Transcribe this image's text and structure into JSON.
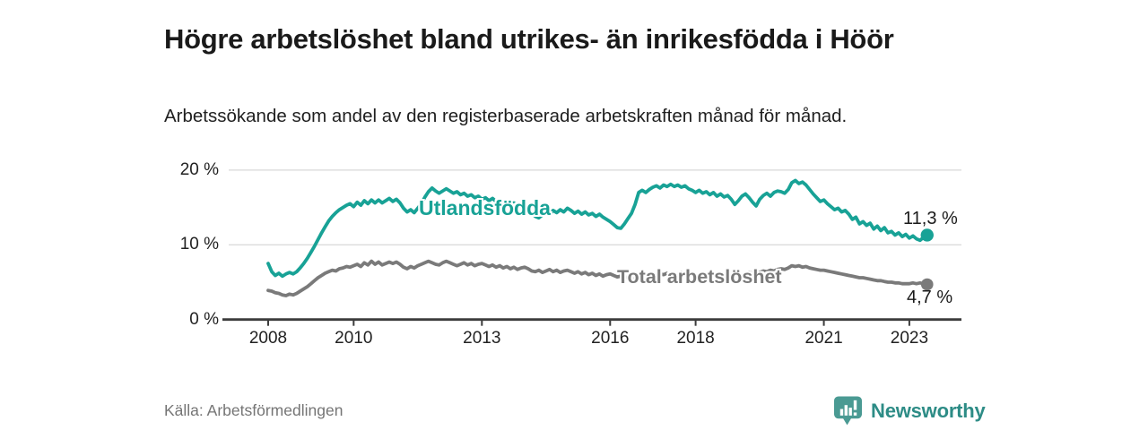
{
  "header": {
    "title": "Högre arbetslöshet bland utrikes- än inrikesfödda i Höör",
    "subtitle": "Arbetssökande som andel av den registerbaserade arbetskraften månad för månad."
  },
  "chart_data": {
    "type": "line",
    "title": "Högre arbetslöshet bland utrikes- än inrikesfödda i Höör",
    "subtitle": "Arbetssökande som andel av den registerbaserade arbetskraften månad för månad.",
    "x_unit": "month",
    "x_range": [
      "2008-01",
      "2023-06"
    ],
    "x_tick_labels": [
      "2008",
      "2010",
      "2013",
      "2016",
      "2018",
      "2021",
      "2023"
    ],
    "y_ticks": [
      {
        "value": 0,
        "label": "0 %"
      },
      {
        "value": 10,
        "label": "10 %"
      },
      {
        "value": 20,
        "label": "20 %"
      }
    ],
    "ylim": [
      0,
      21.5
    ],
    "grid": "horizontal",
    "legend_position": "inline-labels",
    "series": [
      {
        "name": "Utlandsfödda",
        "color": "#18a296",
        "end_value": 11.3,
        "end_label": "11,3 %",
        "values": [
          7.5,
          6.4,
          5.9,
          6.2,
          5.8,
          6.1,
          6.3,
          6.1,
          6.4,
          6.9,
          7.5,
          8.2,
          9.0,
          9.8,
          10.7,
          11.6,
          12.4,
          13.2,
          13.8,
          14.3,
          14.7,
          15.0,
          15.3,
          15.5,
          15.1,
          15.7,
          15.3,
          15.9,
          15.5,
          16.0,
          15.6,
          16.0,
          15.6,
          15.9,
          16.2,
          15.8,
          16.1,
          15.6,
          14.9,
          14.4,
          14.7,
          14.3,
          14.9,
          15.5,
          16.4,
          17.1,
          17.6,
          17.2,
          16.9,
          17.2,
          17.5,
          17.2,
          16.9,
          17.1,
          16.7,
          16.9,
          16.5,
          16.7,
          16.3,
          16.5,
          16.1,
          16.3,
          15.9,
          16.2,
          15.8,
          16.0,
          15.6,
          15.8,
          15.4,
          15.6,
          15.2,
          15.5,
          15.1,
          14.7,
          14.2,
          13.8,
          13.6,
          14.0,
          14.4,
          14.1,
          14.6,
          14.3,
          14.7,
          14.4,
          14.9,
          14.6,
          14.2,
          14.5,
          14.1,
          14.4,
          14.0,
          14.2,
          13.8,
          14.1,
          13.7,
          13.4,
          13.1,
          12.7,
          12.3,
          12.2,
          12.8,
          13.5,
          14.2,
          15.4,
          17.0,
          17.3,
          17.0,
          17.4,
          17.7,
          17.9,
          17.6,
          18.0,
          17.8,
          18.1,
          17.8,
          18.0,
          17.7,
          17.9,
          17.5,
          17.3,
          17.0,
          17.3,
          16.9,
          17.1,
          16.7,
          17.0,
          16.5,
          16.8,
          16.4,
          16.6,
          16.1,
          15.4,
          15.9,
          16.5,
          16.8,
          16.3,
          15.7,
          15.2,
          16.1,
          16.6,
          16.9,
          16.5,
          17.0,
          17.2,
          17.1,
          16.9,
          17.4,
          18.3,
          18.6,
          18.2,
          18.4,
          18.0,
          17.4,
          16.8,
          16.3,
          15.8,
          16.0,
          15.5,
          15.1,
          14.7,
          14.9,
          14.4,
          14.6,
          14.1,
          13.4,
          13.7,
          12.8,
          13.1,
          12.6,
          12.9,
          12.1,
          12.5,
          11.9,
          12.3,
          11.6,
          11.8,
          11.3,
          11.6,
          11.1,
          11.4,
          10.9,
          11.2,
          10.8,
          10.6,
          11.0,
          11.3
        ]
      },
      {
        "name": "Total arbetslöshet",
        "color": "#7a7a7a",
        "end_value": 4.7,
        "end_label": "4,7 %",
        "values": [
          3.9,
          3.8,
          3.6,
          3.5,
          3.3,
          3.2,
          3.4,
          3.3,
          3.5,
          3.8,
          4.1,
          4.4,
          4.8,
          5.2,
          5.6,
          5.9,
          6.2,
          6.4,
          6.6,
          6.5,
          6.8,
          6.9,
          7.1,
          7.0,
          7.2,
          7.4,
          7.1,
          7.6,
          7.3,
          7.8,
          7.4,
          7.7,
          7.3,
          7.5,
          7.7,
          7.5,
          7.7,
          7.4,
          7.0,
          6.8,
          7.1,
          6.9,
          7.2,
          7.4,
          7.6,
          7.8,
          7.6,
          7.4,
          7.3,
          7.6,
          7.8,
          7.6,
          7.4,
          7.2,
          7.4,
          7.6,
          7.3,
          7.5,
          7.2,
          7.4,
          7.5,
          7.3,
          7.1,
          7.3,
          7.0,
          7.2,
          6.9,
          7.1,
          6.8,
          7.0,
          6.7,
          6.9,
          7.0,
          6.8,
          6.5,
          6.4,
          6.6,
          6.3,
          6.5,
          6.7,
          6.4,
          6.6,
          6.3,
          6.5,
          6.6,
          6.4,
          6.2,
          6.4,
          6.1,
          6.3,
          6.0,
          6.2,
          5.9,
          6.1,
          5.8,
          6.0,
          6.1,
          5.9,
          5.7,
          5.8,
          5.6,
          5.7,
          5.5,
          5.7,
          5.9,
          5.8,
          6.0,
          5.9,
          6.1,
          5.9,
          6.1,
          6.0,
          6.2,
          6.0,
          6.2,
          6.1,
          6.3,
          6.1,
          6.0,
          5.9,
          6.0,
          5.8,
          5.9,
          5.7,
          5.8,
          5.6,
          5.7,
          5.9,
          5.8,
          6.0,
          5.9,
          6.1,
          6.2,
          6.0,
          6.1,
          6.3,
          6.2,
          6.4,
          6.3,
          6.5,
          6.4,
          6.6,
          6.5,
          6.7,
          6.8,
          6.7,
          6.9,
          7.2,
          7.1,
          7.2,
          7.0,
          7.1,
          6.9,
          6.8,
          6.7,
          6.6,
          6.6,
          6.5,
          6.4,
          6.3,
          6.2,
          6.1,
          6.0,
          5.9,
          5.8,
          5.7,
          5.6,
          5.6,
          5.5,
          5.4,
          5.3,
          5.2,
          5.2,
          5.1,
          5.0,
          5.0,
          4.9,
          4.9,
          4.8,
          4.8,
          4.8,
          4.9,
          4.8,
          4.9,
          4.8,
          4.7
        ]
      }
    ]
  },
  "footer": {
    "source": "Källa: Arbetsförmedlingen",
    "brand": "Newsworthy"
  },
  "colors": {
    "accent_teal": "#18a296",
    "line_gray": "#7a7a7a",
    "title_text": "#1a1a1a",
    "axis_text": "#222222",
    "grid_line": "#d8d8d8",
    "axis_line": "#3c3c3c",
    "source_text": "#757575",
    "brand_teal": "#2d8c86",
    "brand_icon_teal": "#4a9a93"
  }
}
